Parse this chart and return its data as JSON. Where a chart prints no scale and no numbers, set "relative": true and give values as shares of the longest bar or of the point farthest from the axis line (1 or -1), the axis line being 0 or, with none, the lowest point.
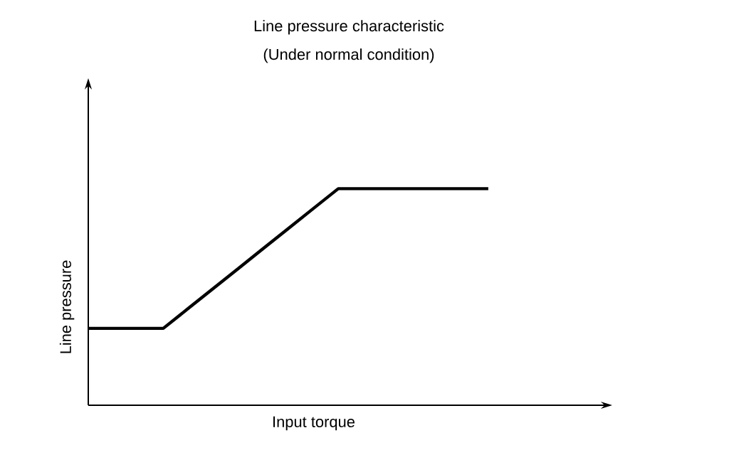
{
  "chart_data": {
    "type": "line",
    "title": "Line pressure characteristic",
    "subtitle": "(Under normal condition)",
    "xlabel": "Input torque",
    "ylabel": "Line pressure",
    "relative": true,
    "categories": [
      null,
      null,
      null,
      null,
      null,
      null,
      null,
      null,
      null,
      null,
      null,
      null,
      null,
      null,
      null,
      null,
      null
    ],
    "series": [
      {
        "color": "#000000",
        "values": [
          0.355,
          0.355,
          0.355,
          0.355,
          0.447,
          0.539,
          0.631,
          0.724,
          0.816,
          0.908,
          1,
          1,
          1,
          1,
          1,
          1,
          1
        ]
      }
    ]
  }
}
